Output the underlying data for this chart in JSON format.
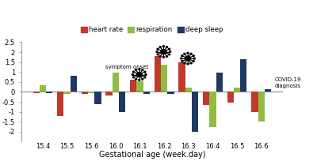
{
  "categories": [
    "15.4",
    "15.5",
    "15.6",
    "16.0",
    "16.1",
    "16.2",
    "16.3",
    "16.4",
    "16.5",
    "16.6"
  ],
  "heart_rate": [
    -0.05,
    -1.2,
    -0.1,
    -0.2,
    0.6,
    1.8,
    1.5,
    -0.65,
    -0.55,
    -1.0
  ],
  "respiration": [
    0.35,
    -0.1,
    -0.05,
    0.95,
    0.55,
    1.38,
    0.2,
    -1.75,
    0.2,
    -1.5
  ],
  "deep_sleep": [
    -0.05,
    0.8,
    -0.6,
    -1.0,
    -0.12,
    -0.1,
    -2.0,
    0.95,
    1.65,
    0.15
  ],
  "heart_rate_color": "#c0392b",
  "respiration_color": "#8fbc42",
  "deep_sleep_color": "#1f3864",
  "ylim": [
    -2.5,
    2.5
  ],
  "yticks": [
    -2,
    -1.5,
    -1,
    -0.5,
    0,
    0.5,
    1,
    1.5,
    2,
    2.5
  ],
  "xlabel": "Gestational age (week.day)",
  "legend_labels": [
    "heart rate",
    "respiration",
    "deep sleep"
  ],
  "bar_width": 0.27,
  "background_color": "#ffffff"
}
